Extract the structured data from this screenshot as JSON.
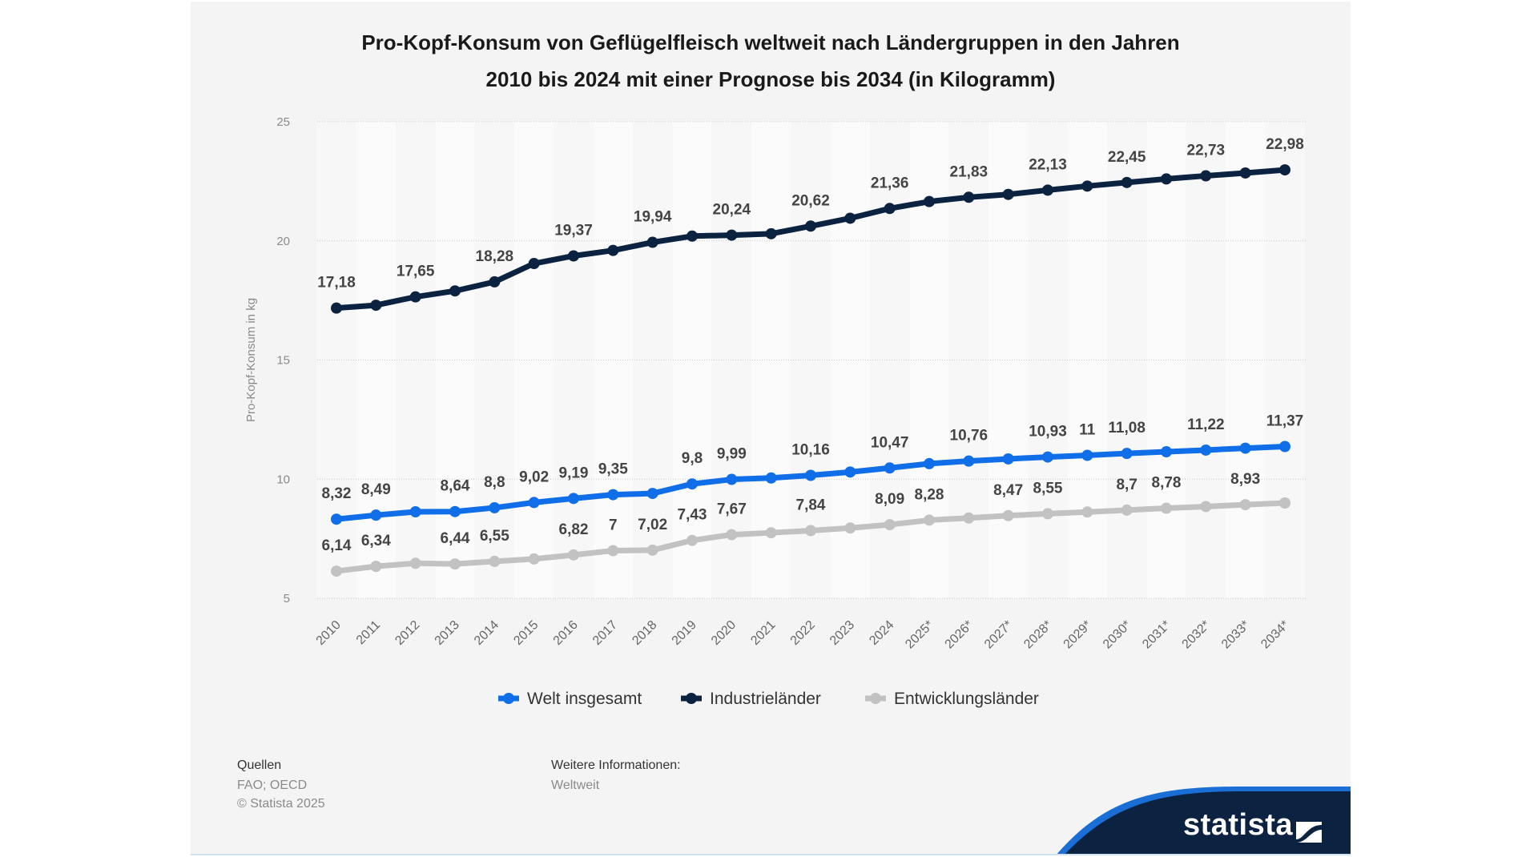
{
  "chart_data": {
    "type": "line",
    "title_lines": [
      "Pro-Kopf-Konsum von Geflügelfleisch weltweit nach Ländergruppen in den Jahren",
      "2010 bis 2024 mit einer Prognose bis 2034 (in Kilogramm)"
    ],
    "ylabel": "Pro-Kopf-Konsum in kg",
    "xlabel": "",
    "ylim": [
      5,
      25
    ],
    "yticks": [
      5,
      10,
      15,
      20,
      25
    ],
    "grid": true,
    "legend_position": "bottom",
    "categories": [
      "2010",
      "2011",
      "2012",
      "2013",
      "2014",
      "2015",
      "2016",
      "2017",
      "2018",
      "2019",
      "2020",
      "2021",
      "2022",
      "2023",
      "2024",
      "2025*",
      "2026*",
      "2027*",
      "2028*",
      "2029*",
      "2030*",
      "2031*",
      "2032*",
      "2033*",
      "2034*"
    ],
    "series": [
      {
        "name": "Welt insgesamt",
        "color": "#0f6ee8",
        "values": [
          8.32,
          8.49,
          8.63,
          8.64,
          8.8,
          9.02,
          9.19,
          9.35,
          9.4,
          9.8,
          9.99,
          10.05,
          10.16,
          10.3,
          10.47,
          10.65,
          10.76,
          10.85,
          10.93,
          11,
          11.08,
          11.15,
          11.22,
          11.3,
          11.37
        ],
        "labels": [
          "8,32",
          "8,49",
          null,
          "8,64",
          "8,8",
          "9,02",
          "9,19",
          "9,35",
          null,
          "9,8",
          "9,99",
          null,
          "10,16",
          null,
          "10,47",
          null,
          "10,76",
          null,
          "10,93",
          "11",
          "11,08",
          null,
          "11,22",
          null,
          "11,37"
        ]
      },
      {
        "name": "Industrieländer",
        "color": "#0b2341",
        "values": [
          17.18,
          17.3,
          17.65,
          17.9,
          18.28,
          19.05,
          19.37,
          19.6,
          19.94,
          20.2,
          20.24,
          20.3,
          20.62,
          20.95,
          21.36,
          21.65,
          21.83,
          21.95,
          22.13,
          22.3,
          22.45,
          22.6,
          22.73,
          22.85,
          22.98
        ],
        "labels": [
          "17,18",
          null,
          "17,65",
          null,
          "18,28",
          null,
          "19,37",
          null,
          "19,94",
          null,
          "20,24",
          null,
          "20,62",
          null,
          "21,36",
          null,
          "21,83",
          null,
          "22,13",
          null,
          "22,45",
          null,
          "22,73",
          null,
          "22,98"
        ]
      },
      {
        "name": "Entwicklungsländer",
        "color": "#c2c2c2",
        "values": [
          6.14,
          6.34,
          6.47,
          6.44,
          6.55,
          6.65,
          6.82,
          7,
          7.02,
          7.43,
          7.67,
          7.75,
          7.84,
          7.95,
          8.09,
          8.28,
          8.37,
          8.47,
          8.55,
          8.62,
          8.7,
          8.78,
          8.85,
          8.93,
          9.0
        ],
        "labels": [
          "6,14",
          "6,34",
          null,
          "6,44",
          "6,55",
          null,
          "6,82",
          "7",
          "7,02",
          "7,43",
          "7,67",
          null,
          "7,84",
          null,
          "8,09",
          "8,28",
          null,
          "8,47",
          "8,55",
          null,
          "8,7",
          "8,78",
          null,
          "8,93",
          null
        ]
      }
    ]
  },
  "footer": {
    "sources_heading": "Quellen",
    "sources": "FAO; OECD",
    "copyright": "© Statista 2025",
    "more_info_heading": "Weitere Informationen:",
    "more_info": "Weltweit"
  },
  "logo": {
    "text": "statista",
    "bg_color": "#0b2341",
    "accent_color": "#1a6fd6"
  }
}
